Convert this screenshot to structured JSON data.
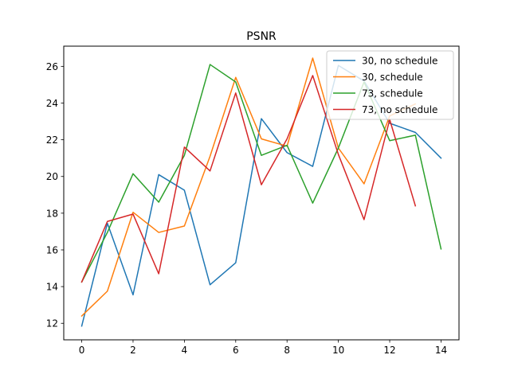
{
  "chart_data": {
    "type": "line",
    "title": "PSNR",
    "xlabel": "",
    "ylabel": "",
    "xlim": [
      -0.7,
      14.7
    ],
    "ylim": [
      11.1,
      27.1
    ],
    "xticks": [
      0,
      2,
      4,
      6,
      8,
      10,
      12,
      14
    ],
    "yticks": [
      12,
      14,
      16,
      18,
      20,
      22,
      24,
      26
    ],
    "grid": false,
    "legend_position": "top-right",
    "series": [
      {
        "name": "30, no schedule",
        "color": "#1f77b4",
        "x": [
          0,
          1,
          2,
          3,
          4,
          5,
          6,
          7,
          8,
          9,
          10,
          11,
          12,
          13,
          14
        ],
        "values": [
          11.85,
          17.45,
          13.55,
          20.1,
          19.25,
          14.1,
          15.3,
          23.15,
          21.3,
          20.55,
          26.05,
          25.2,
          22.9,
          22.4,
          21.0
        ]
      },
      {
        "name": "30, schedule",
        "color": "#ff7f0e",
        "x": [
          0,
          1,
          2,
          3,
          4,
          5,
          6,
          7,
          8,
          9,
          10,
          11,
          12,
          13
        ],
        "values": [
          12.4,
          13.75,
          18.05,
          16.95,
          17.3,
          21.1,
          25.4,
          22.05,
          21.65,
          26.45,
          21.55,
          19.6,
          23.3,
          23.95
        ]
      },
      {
        "name": "73, schedule",
        "color": "#2ca02c",
        "x": [
          0,
          1,
          2,
          3,
          4,
          5,
          6,
          7,
          8,
          9,
          10,
          11,
          12,
          13,
          14
        ],
        "values": [
          14.25,
          16.95,
          20.15,
          18.6,
          21.15,
          26.1,
          25.15,
          21.15,
          21.7,
          18.55,
          21.55,
          25.15,
          21.95,
          22.25,
          16.05
        ]
      },
      {
        "name": "73, no schedule",
        "color": "#d62728",
        "x": [
          0,
          1,
          2,
          3,
          4,
          5,
          6,
          7,
          8,
          9,
          10,
          11,
          12,
          13
        ],
        "values": [
          14.25,
          17.55,
          17.95,
          14.7,
          21.6,
          20.3,
          24.55,
          19.55,
          22.05,
          25.5,
          21.2,
          17.65,
          23.1,
          18.4
        ]
      }
    ]
  }
}
